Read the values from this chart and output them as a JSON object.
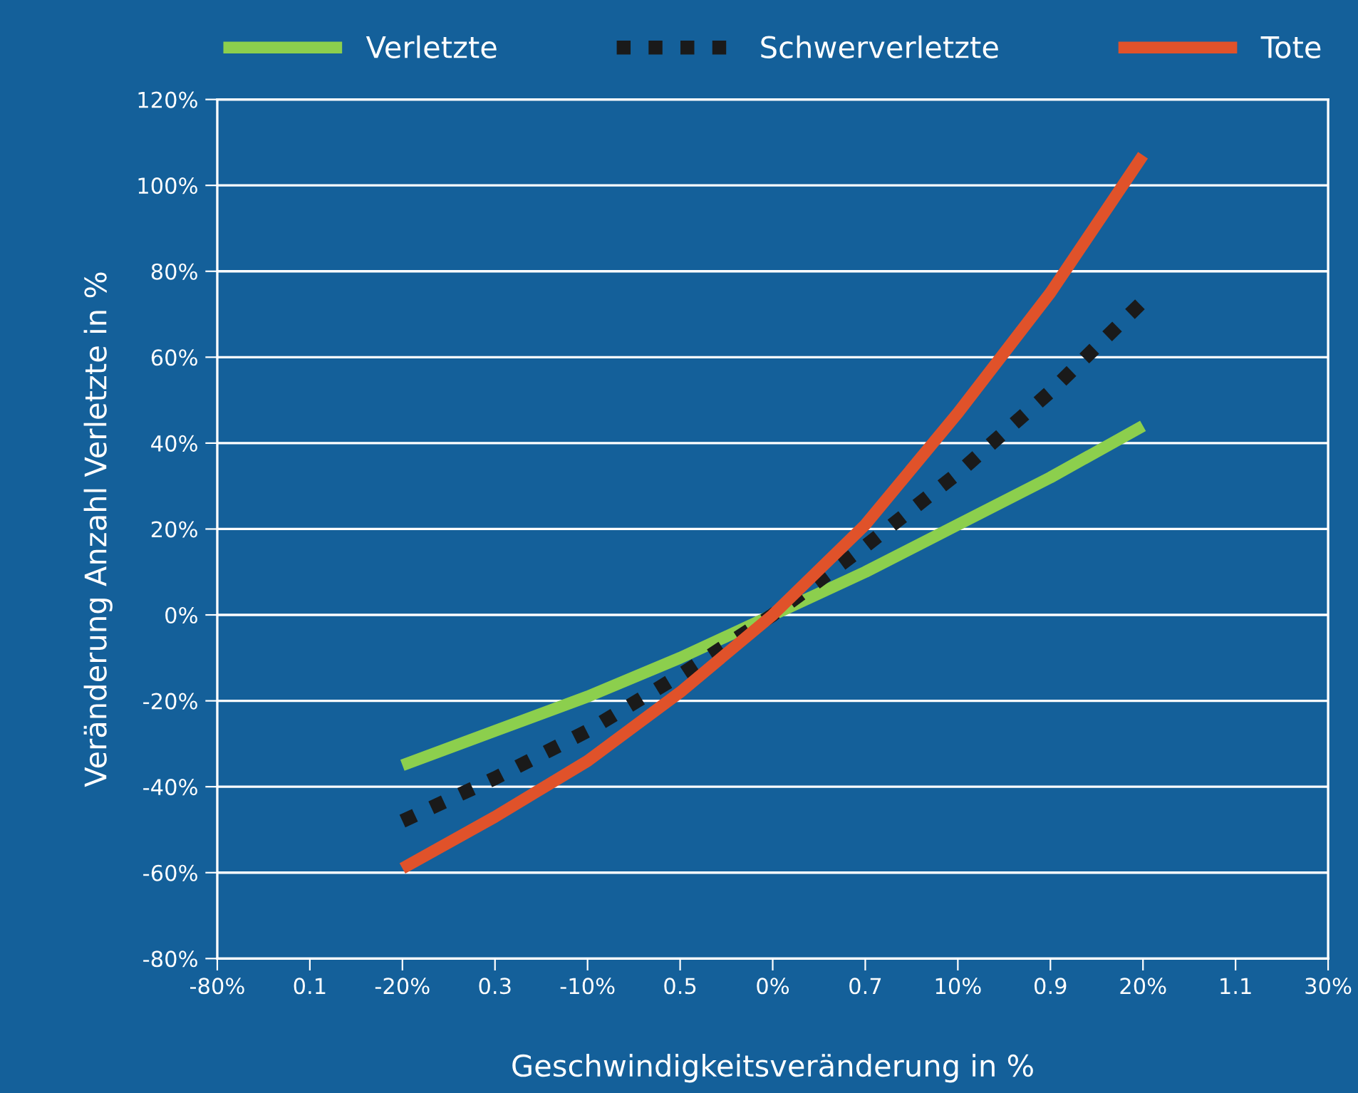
{
  "chart_data": {
    "type": "line",
    "xlabel": "Geschwindigkeitsveränderung in %",
    "ylabel": "Veränderung Anzahl Verletzte in %",
    "categories": [
      "-80%",
      "0.1",
      "-20%",
      "0.3",
      "-10%",
      "0.5",
      "0%",
      "0.7",
      "10%",
      "0.9",
      "20%",
      "1.1",
      "30%"
    ],
    "series": [
      {
        "name": "Verletzte",
        "color": "#8ccf4d",
        "line_style": "solid",
        "values": [
          null,
          null,
          -35,
          -27,
          -19,
          -10,
          0,
          10,
          21,
          32,
          44,
          null,
          null
        ]
      },
      {
        "name": "Schwerverletzte",
        "color": "#1a1a1a",
        "line_style": "dotted",
        "values": [
          null,
          null,
          -48,
          -38,
          -27,
          -14,
          0,
          16,
          33,
          52,
          73,
          null,
          null
        ]
      },
      {
        "name": "Tote",
        "color": "#e0522a",
        "line_style": "solid",
        "values": [
          null,
          null,
          -59,
          -47,
          -34,
          -18,
          0,
          21,
          47,
          75,
          107,
          null,
          null
        ]
      }
    ],
    "ylim": [
      -80,
      120
    ],
    "yticks": [
      {
        "value": -80,
        "label": "-80%"
      },
      {
        "value": -60,
        "label": "-60%"
      },
      {
        "value": -40,
        "label": "-40%"
      },
      {
        "value": -20,
        "label": "-20%"
      },
      {
        "value": 0,
        "label": "0%"
      },
      {
        "value": 20,
        "label": "20%"
      },
      {
        "value": 40,
        "label": "40%"
      },
      {
        "value": 60,
        "label": "60%"
      },
      {
        "value": 80,
        "label": "80%"
      },
      {
        "value": 100,
        "label": "100%"
      },
      {
        "value": 120,
        "label": "120%"
      }
    ],
    "grid": "y",
    "legend": "top",
    "marker": "none"
  }
}
